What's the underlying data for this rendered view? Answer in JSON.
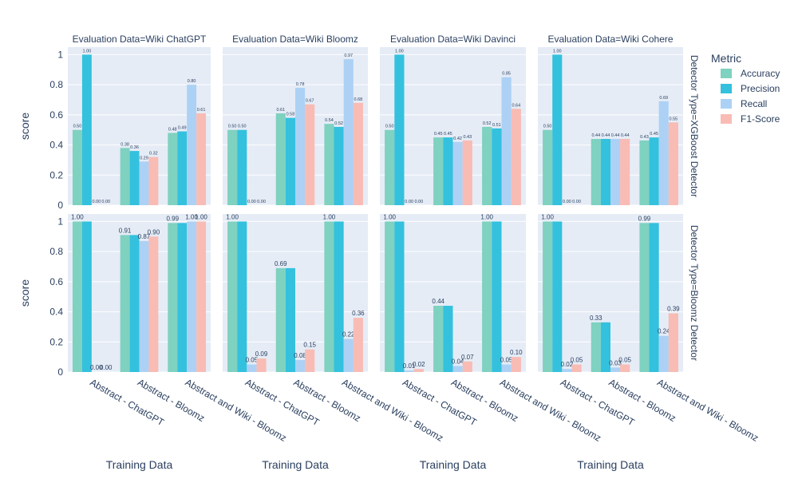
{
  "chart_data": {
    "type": "bar",
    "categories": [
      "Abstract - ChatGPT",
      "Abstract - Bloomz",
      "Abstract and Wiki - Bloomz"
    ],
    "xlabel": "Training Data",
    "ylabel": "score",
    "ylim": [
      0,
      1.05
    ],
    "yticks": [
      "0",
      "0.2",
      "0.4",
      "0.6",
      "0.8",
      "1"
    ],
    "grid": true,
    "legend": {
      "title": "Metric",
      "placement": "right",
      "entries": [
        {
          "name": "Accuracy",
          "color": "#7fd1c0"
        },
        {
          "name": "Precision",
          "color": "#33c1de"
        },
        {
          "name": "Recall",
          "color": "#acd1f5"
        },
        {
          "name": "F1-Score",
          "color": "#f8bcb5"
        }
      ]
    },
    "columns": [
      {
        "title": "Evaluation Data=Wiki ChatGPT"
      },
      {
        "title": "Evaluation Data=Wiki Bloomz"
      },
      {
        "title": "Evaluation Data=Wiki Davinci"
      },
      {
        "title": "Evaluation Data=Wiki Cohere"
      }
    ],
    "rows": [
      {
        "title": "Detector Type=XGBoost Detector",
        "panels": [
          {
            "values": [
              [
                0.5,
                1.0,
                0.0,
                0.0
              ],
              [
                0.38,
                0.36,
                0.29,
                0.32
              ],
              [
                0.48,
                0.49,
                0.8,
                0.61
              ]
            ],
            "labels": [
              [
                "0.50",
                "1.00",
                "0.00",
                "0.00"
              ],
              [
                "0.38",
                "0.36",
                "0.29",
                "0.32"
              ],
              [
                "0.48",
                "0.49",
                "0.80",
                "0.61"
              ]
            ]
          },
          {
            "values": [
              [
                0.5,
                0.5,
                0.0,
                0.0
              ],
              [
                0.61,
                0.58,
                0.78,
                0.67
              ],
              [
                0.54,
                0.52,
                0.97,
                0.68
              ]
            ],
            "labels": [
              [
                "0.50",
                "0.50",
                "0.00",
                "0.00"
              ],
              [
                "0.61",
                "0.58",
                "0.78",
                "0.67"
              ],
              [
                "0.54",
                "0.52",
                "0.97",
                "0.68"
              ]
            ]
          },
          {
            "values": [
              [
                0.5,
                1.0,
                0.0,
                0.0
              ],
              [
                0.45,
                0.45,
                0.42,
                0.43
              ],
              [
                0.52,
                0.51,
                0.85,
                0.64
              ]
            ],
            "labels": [
              [
                "0.50",
                "1.00",
                "0.00",
                "0.00"
              ],
              [
                "0.45",
                "0.45",
                "0.42",
                "0.43"
              ],
              [
                "0.52",
                "0.51",
                "0.85",
                "0.64"
              ]
            ]
          },
          {
            "values": [
              [
                0.5,
                1.0,
                0.0,
                0.0
              ],
              [
                0.44,
                0.44,
                0.44,
                0.44
              ],
              [
                0.43,
                0.45,
                0.69,
                0.55
              ]
            ],
            "labels": [
              [
                "0.50",
                "1.00",
                "0.00",
                "0.00"
              ],
              [
                "0.44",
                "0.44",
                "0.44",
                "0.44"
              ],
              [
                "0.43",
                "0.45",
                "0.69",
                "0.55"
              ]
            ]
          }
        ]
      },
      {
        "title": "Detector Type=Bloomz Detector",
        "panels": [
          {
            "values": [
              [
                1.0,
                1.0,
                0.0,
                0.0
              ],
              [
                0.91,
                0.91,
                0.87,
                0.9
              ],
              [
                0.99,
                0.99,
                1.0,
                1.0
              ]
            ],
            "labels": [
              [
                "1.00",
                "",
                "0.00",
                "0.00"
              ],
              [
                "0.91",
                "",
                "0.87",
                "0.90"
              ],
              [
                "0.99",
                "",
                "1.00",
                "1.00"
              ]
            ]
          },
          {
            "values": [
              [
                1.0,
                1.0,
                0.05,
                0.09
              ],
              [
                0.69,
                0.69,
                0.08,
                0.15
              ],
              [
                1.0,
                1.0,
                0.22,
                0.36
              ]
            ],
            "labels": [
              [
                "1.00",
                "",
                "0.05",
                "0.09"
              ],
              [
                "0.69",
                "",
                "0.08",
                "0.15"
              ],
              [
                "1.00",
                "",
                "0.22",
                "0.36"
              ]
            ]
          },
          {
            "values": [
              [
                1.0,
                1.0,
                0.01,
                0.02
              ],
              [
                0.44,
                0.44,
                0.04,
                0.07
              ],
              [
                1.0,
                1.0,
                0.05,
                0.1
              ]
            ],
            "labels": [
              [
                "1.00",
                "",
                "0.01",
                "0.02"
              ],
              [
                "0.44",
                "",
                "0.04",
                "0.07"
              ],
              [
                "1.00",
                "",
                "0.05",
                "0.10"
              ]
            ]
          },
          {
            "values": [
              [
                1.0,
                1.0,
                0.02,
                0.05
              ],
              [
                0.33,
                0.33,
                0.03,
                0.05
              ],
              [
                0.99,
                0.99,
                0.24,
                0.39
              ]
            ],
            "labels": [
              [
                "1.00",
                "",
                "0.02",
                "0.05"
              ],
              [
                "0.33",
                "",
                "0.03",
                "0.05"
              ],
              [
                "0.99",
                "",
                "0.24",
                "0.39"
              ]
            ]
          }
        ]
      }
    ]
  }
}
